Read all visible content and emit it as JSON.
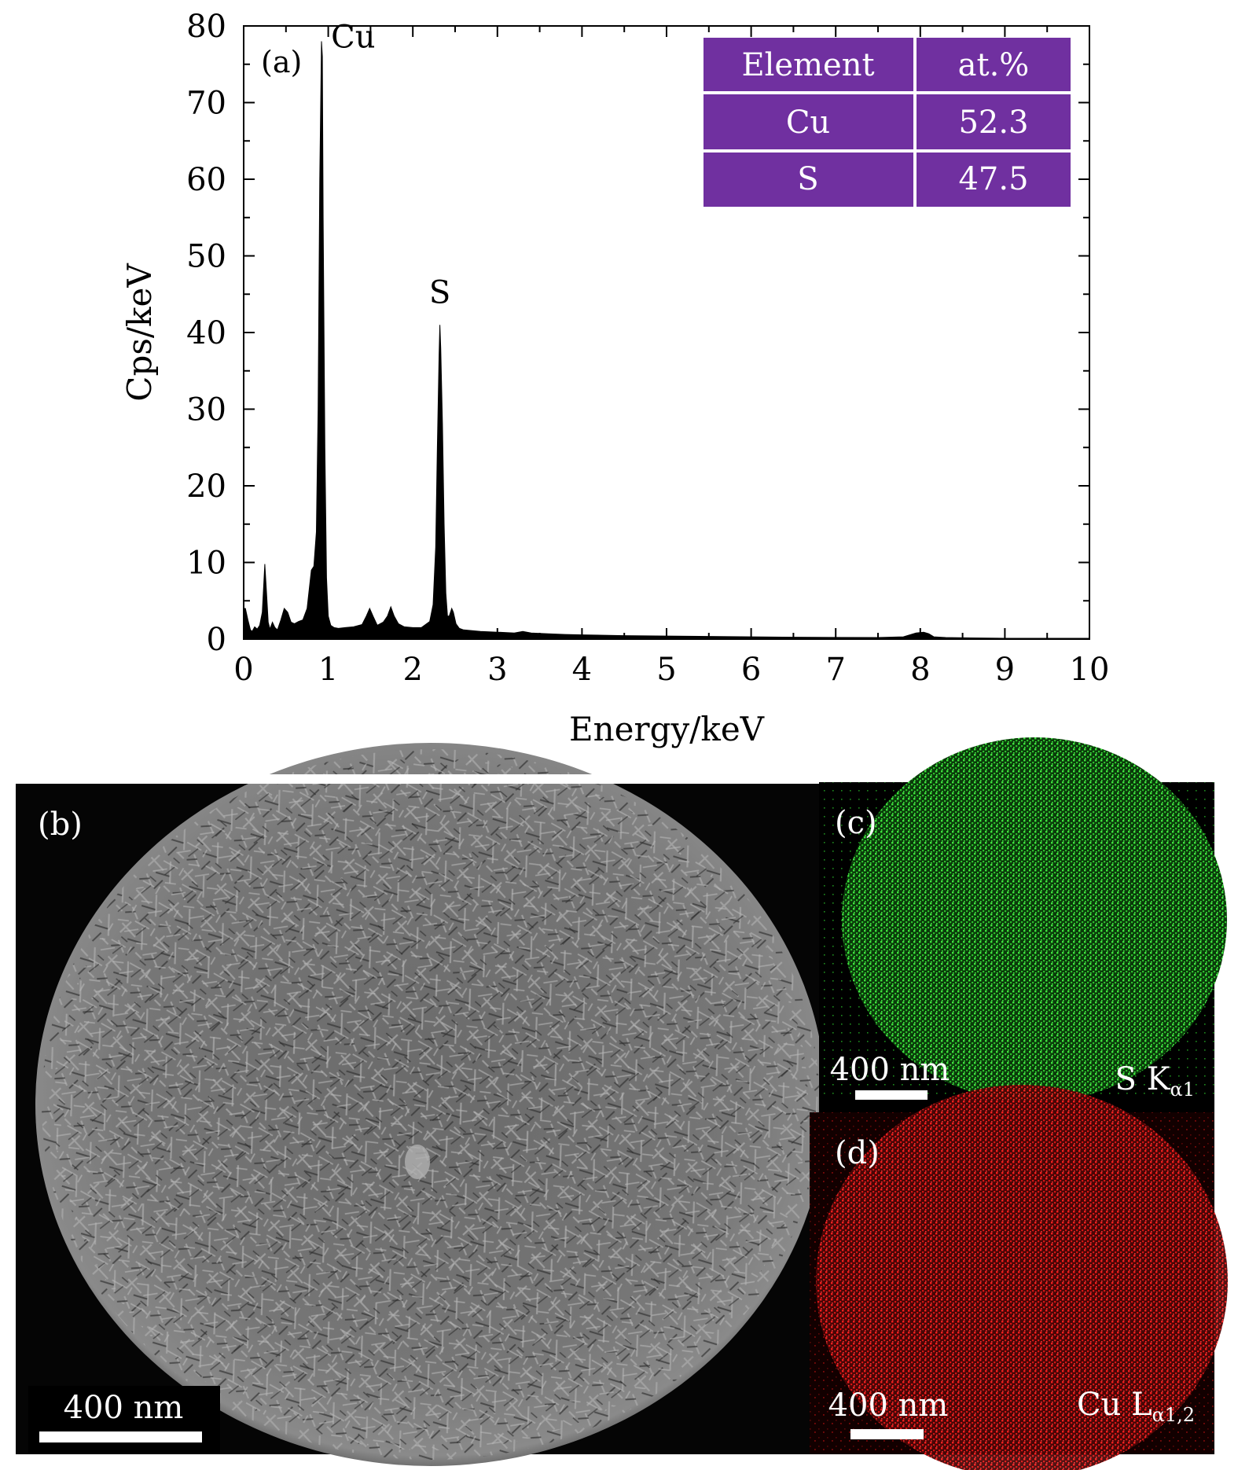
{
  "chart_data": {
    "type": "area",
    "panel_label": "(a)",
    "xlabel": "Energy/keV",
    "ylabel": "Cps/keV",
    "xlim": [
      0,
      10
    ],
    "ylim": [
      0,
      80
    ],
    "xticks": [
      "0",
      "1",
      "2",
      "3",
      "4",
      "5",
      "6",
      "7",
      "8",
      "9",
      "10"
    ],
    "yticks": [
      "0",
      "10",
      "20",
      "30",
      "40",
      "50",
      "60",
      "70",
      "80"
    ],
    "grid": false,
    "series": [
      {
        "name": "EDS spectrum",
        "color": "#000000",
        "x": [
          0.0,
          0.02,
          0.05,
          0.08,
          0.1,
          0.13,
          0.16,
          0.19,
          0.22,
          0.25,
          0.27,
          0.29,
          0.31,
          0.34,
          0.37,
          0.4,
          0.44,
          0.48,
          0.52,
          0.56,
          0.6,
          0.65,
          0.7,
          0.75,
          0.8,
          0.83,
          0.86,
          0.88,
          0.9,
          0.92,
          0.93,
          0.94,
          0.96,
          0.98,
          1.0,
          1.03,
          1.07,
          1.12,
          1.2,
          1.3,
          1.4,
          1.45,
          1.49,
          1.53,
          1.58,
          1.65,
          1.7,
          1.74,
          1.78,
          1.83,
          1.9,
          2.0,
          2.1,
          2.2,
          2.24,
          2.27,
          2.29,
          2.31,
          2.32,
          2.33,
          2.35,
          2.37,
          2.39,
          2.41,
          2.43,
          2.46,
          2.48,
          2.51,
          2.55,
          2.6,
          2.7,
          2.8,
          3.0,
          3.2,
          3.3,
          3.4,
          3.6,
          3.8,
          4.0,
          4.5,
          5.0,
          5.5,
          6.0,
          6.5,
          7.0,
          7.5,
          7.8,
          7.95,
          8.04,
          8.1,
          8.16,
          8.3,
          8.6,
          9.0,
          9.5,
          10.0
        ],
        "y": [
          4.0,
          4.0,
          2.5,
          1.2,
          1.0,
          1.6,
          1.3,
          1.8,
          3.5,
          9.8,
          6.0,
          2.2,
          1.3,
          2.2,
          1.5,
          1.2,
          2.5,
          4.0,
          3.5,
          2.2,
          2.0,
          2.3,
          2.5,
          4.0,
          9.0,
          9.5,
          14.0,
          30.0,
          60.0,
          78.0,
          76.0,
          55.0,
          25.0,
          8.0,
          3.0,
          1.8,
          1.5,
          1.4,
          1.5,
          1.6,
          1.9,
          3.0,
          4.0,
          3.0,
          1.8,
          2.2,
          3.0,
          4.2,
          3.0,
          2.0,
          1.6,
          1.5,
          1.5,
          2.3,
          4.5,
          12.0,
          25.0,
          37.0,
          41.0,
          38.0,
          28.0,
          15.0,
          6.0,
          3.0,
          3.0,
          4.0,
          3.5,
          2.0,
          1.4,
          1.2,
          1.1,
          1.0,
          0.9,
          0.8,
          1.0,
          0.8,
          0.7,
          0.6,
          0.55,
          0.45,
          0.4,
          0.35,
          0.3,
          0.25,
          0.22,
          0.2,
          0.3,
          0.8,
          0.9,
          0.7,
          0.3,
          0.2,
          0.15,
          0.1,
          0.1,
          0.1
        ]
      }
    ],
    "peak_labels": [
      {
        "text": "Cu",
        "x": 0.94,
        "y": 78
      },
      {
        "text": "S",
        "x": 2.32,
        "y": 41
      }
    ],
    "inset_table": {
      "header": [
        "Element",
        "at.%"
      ],
      "rows": [
        [
          "Cu",
          "52.3"
        ],
        [
          "S",
          "47.5"
        ]
      ],
      "color": "#7030a0"
    }
  },
  "images": {
    "sem": {
      "label": "(b)",
      "scale_bar": "400 nm"
    },
    "map_s": {
      "label": "(c)",
      "scale_bar": "400 nm",
      "signal_main": "S K",
      "signal_sub": "α1",
      "color": "#2fd02f"
    },
    "map_cu": {
      "label": "(d)",
      "scale_bar": "400 nm",
      "signal_main": "Cu L",
      "signal_sub": "α1,2",
      "color": "#e01010"
    }
  }
}
